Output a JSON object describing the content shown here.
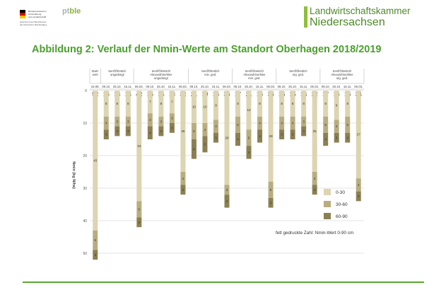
{
  "header": {
    "ministry_lines": [
      "Bundesministerium",
      "für Ernährung",
      "und Landwirtschaft"
    ],
    "ministry_sub": [
      "aufgrund eines Beschlusses",
      "des Deutschen Bundestages"
    ],
    "ptble": {
      "pt": "pt",
      "ble": "ble"
    },
    "chamber_line1": "Landwirtschaftskammer",
    "chamber_line2": "Niedersachsen"
  },
  "page_title": "Abbildung 2: Verlauf der Nmin-Werte am Standort Oberhagen 2018/2019",
  "colors": {
    "accent": "#4aa02c",
    "seg_0_30": "#ddd4b2",
    "seg_30_60": "#b9ad80",
    "seg_60_90": "#8c8052"
  },
  "chart_data": {
    "type": "bar",
    "stacked": true,
    "ylabel": "Nmin (kg N/ha)",
    "y_ticks": [
      0,
      10,
      20,
      30,
      40,
      50
    ],
    "ylim": [
      0,
      52
    ],
    "groups": [
      {
        "name": "Start-\nwert",
        "lines": [
          "Start-",
          "wert"
        ],
        "dates": [
          "15.08."
        ]
      },
      {
        "name": "Senf/Ölrettich ungedüngt",
        "lines": [
          "Senf/Ölrettich",
          "ungedüngt"
        ],
        "dates": [
          "09.10.",
          "25.10.",
          "15.11."
        ]
      },
      {
        "name": "Senf/Ölrettich/ Alexandrinerklee ungedüngt",
        "lines": [
          "Senf/Ölrettich/",
          "Alexandrinerklee",
          "ungedüngt"
        ],
        "dates": [
          "06.03.",
          "09.10.",
          "25.10.",
          "15.11.",
          "06.03."
        ]
      },
      {
        "name": "Senf/Ölrettich min. ged.",
        "lines": [
          "Senf/Ölrettich",
          "min. ged."
        ],
        "dates": [
          "09.10.",
          "25.10.",
          "15.11.",
          "06.03."
        ]
      },
      {
        "name": "Senf/Ölrettich/ Alexandrinerklee min. ged.",
        "lines": [
          "Senf/Ölrettich/",
          "Alexandrinerklee",
          "min. ged."
        ],
        "dates": [
          "09.10.",
          "25.10.",
          "15.11.",
          "06.03."
        ]
      },
      {
        "name": "Senf/Ölrettich org. ged.",
        "lines": [
          "Senf/Ölrettich",
          "org. ged."
        ],
        "dates": [
          "09.10.",
          "25.10.",
          "15.11.",
          "06.03."
        ]
      },
      {
        "name": "Senf/Ölrettich/ Alexandrinerklee org. ged.",
        "lines": [
          "Senf/Ölrettich/",
          "Alexandrinerklee",
          "org. ged."
        ],
        "dates": [
          "09.10.",
          "25.10.",
          "15.11.",
          "06.03."
        ]
      }
    ],
    "bars": [
      {
        "total": 52,
        "values": [
          43,
          6,
          3
        ]
      },
      {
        "total": 15,
        "values": [
          8,
          4,
          3
        ]
      },
      {
        "total": 14,
        "values": [
          8,
          3,
          3
        ]
      },
      {
        "total": 14,
        "values": [
          8,
          3,
          3
        ]
      },
      {
        "total": 42,
        "values": [
          34,
          5,
          3
        ]
      },
      {
        "total": 15,
        "values": [
          7,
          4,
          4
        ]
      },
      {
        "total": 14,
        "values": [
          8,
          3,
          3
        ]
      },
      {
        "total": 13,
        "values": [
          7,
          3,
          3
        ]
      },
      {
        "total": 32,
        "values": [
          25,
          4,
          3
        ]
      },
      {
        "total": 21,
        "values": [
          10,
          5,
          6
        ]
      },
      {
        "total": 19,
        "values": [
          10,
          4,
          5
        ]
      },
      {
        "total": 16,
        "values": [
          9,
          4,
          3
        ]
      },
      {
        "total": 36,
        "values": [
          29,
          3,
          4
        ]
      },
      {
        "total": 17,
        "values": [
          8,
          5,
          4
        ]
      },
      {
        "total": 21,
        "values": [
          12,
          5,
          4
        ]
      },
      {
        "total": 16,
        "values": [
          8,
          4,
          4
        ]
      },
      {
        "total": 36,
        "values": [
          28,
          5,
          3
        ]
      },
      {
        "total": 15,
        "values": [
          8,
          4,
          3
        ]
      },
      {
        "total": 15,
        "values": [
          8,
          4,
          3
        ]
      },
      {
        "total": 14,
        "values": [
          8,
          3,
          3
        ]
      },
      {
        "total": 32,
        "values": [
          25,
          4,
          3
        ]
      },
      {
        "total": 17,
        "values": [
          8,
          5,
          4
        ]
      },
      {
        "total": 16,
        "values": [
          9,
          4,
          3
        ]
      },
      {
        "total": 16,
        "values": [
          8,
          5,
          3
        ]
      },
      {
        "total": 34,
        "values": [
          27,
          4,
          3
        ]
      }
    ],
    "series": [
      {
        "name": "0-30"
      },
      {
        "name": "30-60"
      },
      {
        "name": "60-90"
      }
    ],
    "note": "fett gedruckte Zahl: Nmin-Wert 0-90 cm"
  }
}
